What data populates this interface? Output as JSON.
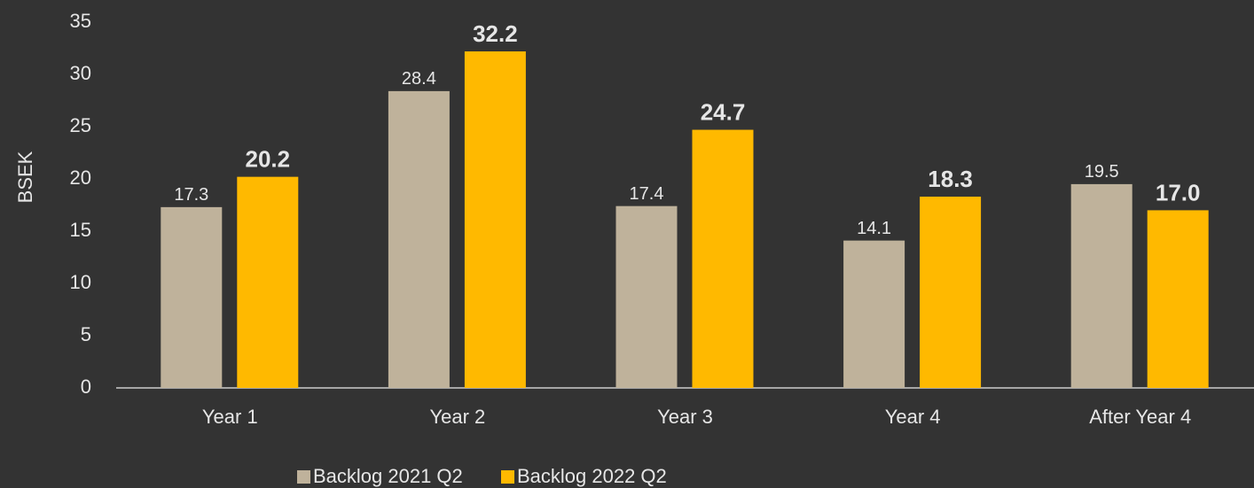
{
  "chart_data": {
    "type": "bar",
    "y_label": "BSEK",
    "categories": [
      "Year 1",
      "Year 2",
      "Year 3",
      "Year 4",
      "After Year 4"
    ],
    "series": [
      {
        "name": "Backlog 2021 Q2",
        "color": "#bfb29b",
        "values": [
          17.3,
          28.4,
          17.4,
          14.1,
          19.5
        ],
        "value_labels": [
          "17.3",
          "28.4",
          "17.4",
          "14.1",
          "19.5"
        ]
      },
      {
        "name": "Backlog 2022 Q2",
        "color": "#ffb900",
        "values": [
          20.2,
          32.2,
          24.7,
          18.3,
          17.0
        ],
        "value_labels": [
          "20.2",
          "32.2",
          "24.7",
          "18.3",
          "17.0"
        ]
      }
    ],
    "ylim": [
      0,
      35
    ],
    "yticks": [
      0,
      5,
      10,
      15,
      20,
      25,
      30,
      35
    ],
    "grid": false,
    "legend": "bottom"
  }
}
